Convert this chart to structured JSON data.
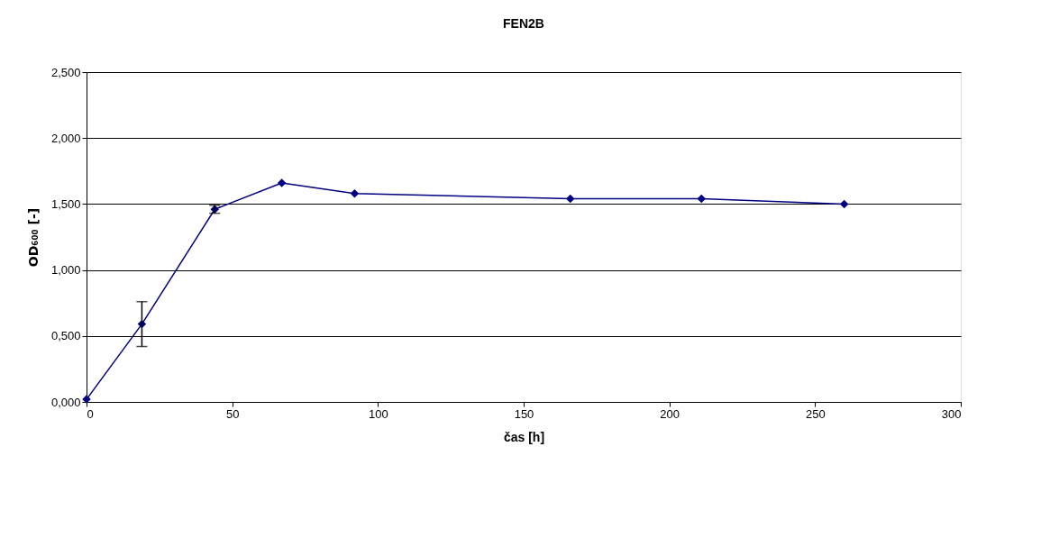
{
  "chart_data": {
    "type": "line",
    "title": "FEN2B",
    "xlabel": "čas [h]",
    "ylabel": "OD₆₀₀ [-]",
    "x": [
      0,
      19,
      44,
      67,
      92,
      166,
      211,
      260
    ],
    "series": [
      {
        "color": "#000080",
        "values": [
          0.02,
          0.59,
          1.46,
          1.66,
          1.58,
          1.54,
          1.54,
          1.5
        ],
        "errors": [
          null,
          0.17,
          0.03,
          null,
          null,
          null,
          null,
          null
        ]
      }
    ],
    "xlim": [
      0,
      300
    ],
    "xticks": [
      0,
      50,
      100,
      150,
      200,
      250,
      300
    ],
    "ylim": [
      0,
      2.5
    ],
    "yticks": [
      {
        "value": 0,
        "label": "0,000"
      },
      {
        "value": 0.5,
        "label": "0,500"
      },
      {
        "value": 1,
        "label": "1,000"
      },
      {
        "value": 1.5,
        "label": "1,500"
      },
      {
        "value": 2,
        "label": "2,000"
      },
      {
        "value": 2.5,
        "label": "2,500"
      }
    ],
    "grid": "y",
    "marker": "diamond",
    "line_style": "solid"
  }
}
